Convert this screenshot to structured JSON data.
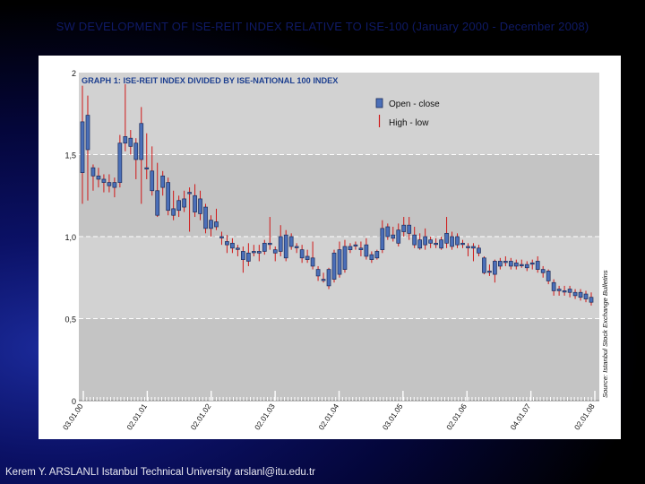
{
  "slide": {
    "title": "SW DEVELOPMENT OF ISE-REIT INDEX RELATIVE TO ISE-100 (January 2000 - December 2008)",
    "footer": "Kerem Y. ARSLANLI Istanbul Technical University arslanl@itu.edu.tr"
  },
  "colors": {
    "plot_background": "#d2d2d2",
    "band": "#c4c4c4",
    "title_text": "#1d3f8f",
    "candle_fill": "#4b6fb8",
    "wick": "#d01818"
  },
  "chart_data": {
    "type": "candlestick",
    "title": "GRAPH 1: ISE-REIT INDEX DIVIDED BY ISE-NATIONAL 100 INDEX",
    "legend": [
      {
        "label": "Open - close",
        "kind": "box"
      },
      {
        "label": "High - low",
        "kind": "wick"
      }
    ],
    "ylim": [
      0,
      2
    ],
    "y_ticks": [
      {
        "value": 0,
        "label": "0"
      },
      {
        "value": 0.5,
        "label": "0,5"
      },
      {
        "value": 1.0,
        "label": "1,0"
      },
      {
        "value": 1.5,
        "label": "1,5"
      },
      {
        "value": 2.0,
        "label": "2"
      }
    ],
    "x_ticks": [
      "03.01.00",
      "02.01.01",
      "02.01.02",
      "02.01.03",
      "02.01.04",
      "03.01.05",
      "02.01.06",
      "04.01.07",
      "02.01.08"
    ],
    "source_note": "Source: Istanbul Stock Exchange Bulletins",
    "candles": [
      {
        "o": 1.39,
        "c": 1.7,
        "h": 1.92,
        "l": 1.2
      },
      {
        "o": 1.53,
        "c": 1.74,
        "h": 1.86,
        "l": 1.22
      },
      {
        "o": 1.42,
        "c": 1.37,
        "h": 1.44,
        "l": 1.28
      },
      {
        "o": 1.37,
        "c": 1.35,
        "h": 1.42,
        "l": 1.3
      },
      {
        "o": 1.35,
        "c": 1.33,
        "h": 1.38,
        "l": 1.27
      },
      {
        "o": 1.31,
        "c": 1.33,
        "h": 1.38,
        "l": 1.27
      },
      {
        "o": 1.33,
        "c": 1.3,
        "h": 1.36,
        "l": 1.24
      },
      {
        "o": 1.33,
        "c": 1.57,
        "h": 1.62,
        "l": 1.3
      },
      {
        "o": 1.57,
        "c": 1.61,
        "h": 1.93,
        "l": 1.52
      },
      {
        "o": 1.6,
        "c": 1.55,
        "h": 1.65,
        "l": 1.5
      },
      {
        "o": 1.47,
        "c": 1.57,
        "h": 1.6,
        "l": 1.35
      },
      {
        "o": 1.69,
        "c": 1.47,
        "h": 1.79,
        "l": 1.2
      },
      {
        "o": 1.42,
        "c": 1.42,
        "h": 1.63,
        "l": 1.35
      },
      {
        "o": 1.4,
        "c": 1.28,
        "h": 1.55,
        "l": 1.25
      },
      {
        "o": 1.28,
        "c": 1.13,
        "h": 1.45,
        "l": 1.12
      },
      {
        "o": 1.37,
        "c": 1.3,
        "h": 1.4,
        "l": 1.25
      },
      {
        "o": 1.33,
        "c": 1.16,
        "h": 1.36,
        "l": 1.13
      },
      {
        "o": 1.17,
        "c": 1.13,
        "h": 1.28,
        "l": 1.1
      },
      {
        "o": 1.16,
        "c": 1.22,
        "h": 1.25,
        "l": 1.12
      },
      {
        "o": 1.18,
        "c": 1.23,
        "h": 1.28,
        "l": 1.15
      },
      {
        "o": 1.27,
        "c": 1.27,
        "h": 1.3,
        "l": 1.03
      },
      {
        "o": 1.15,
        "c": 1.25,
        "h": 1.32,
        "l": 1.12
      },
      {
        "o": 1.14,
        "c": 1.23,
        "h": 1.28,
        "l": 1.1
      },
      {
        "o": 1.05,
        "c": 1.18,
        "h": 1.2,
        "l": 1.02
      },
      {
        "o": 1.05,
        "c": 1.1,
        "h": 1.13,
        "l": 1.0
      },
      {
        "o": 1.09,
        "c": 1.06,
        "h": 1.17,
        "l": 1.04
      },
      {
        "o": 1.0,
        "c": 1.0,
        "h": 1.03,
        "l": 0.95
      },
      {
        "o": 0.97,
        "c": 0.95,
        "h": 1.01,
        "l": 0.9
      },
      {
        "o": 0.93,
        "c": 0.96,
        "h": 0.99,
        "l": 0.9
      },
      {
        "o": 0.93,
        "c": 0.93,
        "h": 0.95,
        "l": 0.88
      },
      {
        "o": 0.86,
        "c": 0.91,
        "h": 0.94,
        "l": 0.78
      },
      {
        "o": 0.9,
        "c": 0.85,
        "h": 0.96,
        "l": 0.82
      },
      {
        "o": 0.91,
        "c": 0.91,
        "h": 0.95,
        "l": 0.88
      },
      {
        "o": 0.9,
        "c": 0.91,
        "h": 0.95,
        "l": 0.85
      },
      {
        "o": 0.91,
        "c": 0.96,
        "h": 0.98,
        "l": 0.89
      },
      {
        "o": 0.96,
        "c": 0.96,
        "h": 1.12,
        "l": 0.92
      },
      {
        "o": 0.92,
        "c": 0.9,
        "h": 0.94,
        "l": 0.85
      },
      {
        "o": 0.91,
        "c": 1.0,
        "h": 1.07,
        "l": 0.88
      },
      {
        "o": 0.87,
        "c": 1.01,
        "h": 1.04,
        "l": 0.85
      },
      {
        "o": 1.0,
        "c": 0.94,
        "h": 1.02,
        "l": 0.92
      },
      {
        "o": 0.94,
        "c": 0.94,
        "h": 0.96,
        "l": 0.9
      },
      {
        "o": 0.92,
        "c": 0.87,
        "h": 0.95,
        "l": 0.84
      },
      {
        "o": 0.88,
        "c": 0.86,
        "h": 0.92,
        "l": 0.84
      },
      {
        "o": 0.87,
        "c": 0.82,
        "h": 0.97,
        "l": 0.8
      },
      {
        "o": 0.8,
        "c": 0.76,
        "h": 0.82,
        "l": 0.73
      },
      {
        "o": 0.74,
        "c": 0.74,
        "h": 0.78,
        "l": 0.72
      },
      {
        "o": 0.8,
        "c": 0.7,
        "h": 0.81,
        "l": 0.68
      },
      {
        "o": 0.74,
        "c": 0.9,
        "h": 0.92,
        "l": 0.72
      },
      {
        "o": 0.77,
        "c": 0.92,
        "h": 0.97,
        "l": 0.75
      },
      {
        "o": 0.8,
        "c": 0.94,
        "h": 0.98,
        "l": 0.78
      },
      {
        "o": 0.92,
        "c": 0.94,
        "h": 0.96,
        "l": 0.9
      },
      {
        "o": 0.95,
        "c": 0.95,
        "h": 0.97,
        "l": 0.92
      },
      {
        "o": 0.93,
        "c": 0.92,
        "h": 0.97,
        "l": 0.88
      },
      {
        "o": 0.95,
        "c": 0.88,
        "h": 0.99,
        "l": 0.86
      },
      {
        "o": 0.89,
        "c": 0.86,
        "h": 0.91,
        "l": 0.84
      },
      {
        "o": 0.87,
        "c": 0.91,
        "h": 0.92,
        "l": 0.86
      },
      {
        "o": 0.92,
        "c": 1.05,
        "h": 1.1,
        "l": 0.9
      },
      {
        "o": 1.06,
        "c": 1.0,
        "h": 1.08,
        "l": 0.98
      },
      {
        "o": 0.99,
        "c": 1.01,
        "h": 1.06,
        "l": 0.97
      },
      {
        "o": 1.04,
        "c": 0.96,
        "h": 1.08,
        "l": 0.94
      },
      {
        "o": 1.03,
        "c": 1.07,
        "h": 1.12,
        "l": 1.0
      },
      {
        "o": 1.07,
        "c": 1.02,
        "h": 1.12,
        "l": 0.98
      },
      {
        "o": 1.01,
        "c": 0.95,
        "h": 1.06,
        "l": 0.93
      },
      {
        "o": 0.98,
        "c": 0.93,
        "h": 1.02,
        "l": 0.92
      },
      {
        "o": 1.0,
        "c": 0.95,
        "h": 1.05,
        "l": 0.92
      },
      {
        "o": 0.98,
        "c": 0.96,
        "h": 1.0,
        "l": 0.93
      },
      {
        "o": 0.96,
        "c": 0.96,
        "h": 0.99,
        "l": 0.93
      },
      {
        "o": 0.93,
        "c": 0.98,
        "h": 1.0,
        "l": 0.92
      },
      {
        "o": 0.96,
        "c": 1.02,
        "h": 1.12,
        "l": 0.93
      },
      {
        "o": 0.94,
        "c": 1.0,
        "h": 1.03,
        "l": 0.92
      },
      {
        "o": 1.0,
        "c": 0.95,
        "h": 1.02,
        "l": 0.93
      },
      {
        "o": 0.96,
        "c": 0.96,
        "h": 0.98,
        "l": 0.93
      },
      {
        "o": 0.94,
        "c": 0.94,
        "h": 0.96,
        "l": 0.88
      },
      {
        "o": 0.93,
        "c": 0.94,
        "h": 0.96,
        "l": 0.85
      },
      {
        "o": 0.93,
        "c": 0.9,
        "h": 0.95,
        "l": 0.88
      },
      {
        "o": 0.87,
        "c": 0.78,
        "h": 0.88,
        "l": 0.77
      },
      {
        "o": 0.79,
        "c": 0.79,
        "h": 0.83,
        "l": 0.76
      },
      {
        "o": 0.77,
        "c": 0.85,
        "h": 0.86,
        "l": 0.72
      },
      {
        "o": 0.85,
        "c": 0.82,
        "h": 0.87,
        "l": 0.8
      },
      {
        "o": 0.85,
        "c": 0.85,
        "h": 0.88,
        "l": 0.82
      },
      {
        "o": 0.82,
        "c": 0.85,
        "h": 0.87,
        "l": 0.8
      },
      {
        "o": 0.84,
        "c": 0.82,
        "h": 0.86,
        "l": 0.8
      },
      {
        "o": 0.83,
        "c": 0.83,
        "h": 0.86,
        "l": 0.81
      },
      {
        "o": 0.83,
        "c": 0.81,
        "h": 0.85,
        "l": 0.79
      },
      {
        "o": 0.84,
        "c": 0.84,
        "h": 0.86,
        "l": 0.8
      },
      {
        "o": 0.85,
        "c": 0.8,
        "h": 0.88,
        "l": 0.78
      },
      {
        "o": 0.8,
        "c": 0.78,
        "h": 0.82,
        "l": 0.75
      },
      {
        "o": 0.79,
        "c": 0.73,
        "h": 0.8,
        "l": 0.71
      },
      {
        "o": 0.72,
        "c": 0.67,
        "h": 0.74,
        "l": 0.64
      },
      {
        "o": 0.68,
        "c": 0.67,
        "h": 0.7,
        "l": 0.64
      },
      {
        "o": 0.67,
        "c": 0.67,
        "h": 0.7,
        "l": 0.64
      },
      {
        "o": 0.68,
        "c": 0.66,
        "h": 0.7,
        "l": 0.63
      },
      {
        "o": 0.66,
        "c": 0.64,
        "h": 0.68,
        "l": 0.62
      },
      {
        "o": 0.66,
        "c": 0.63,
        "h": 0.68,
        "l": 0.61
      },
      {
        "o": 0.65,
        "c": 0.62,
        "h": 0.67,
        "l": 0.6
      },
      {
        "o": 0.63,
        "c": 0.6,
        "h": 0.66,
        "l": 0.58
      }
    ]
  }
}
